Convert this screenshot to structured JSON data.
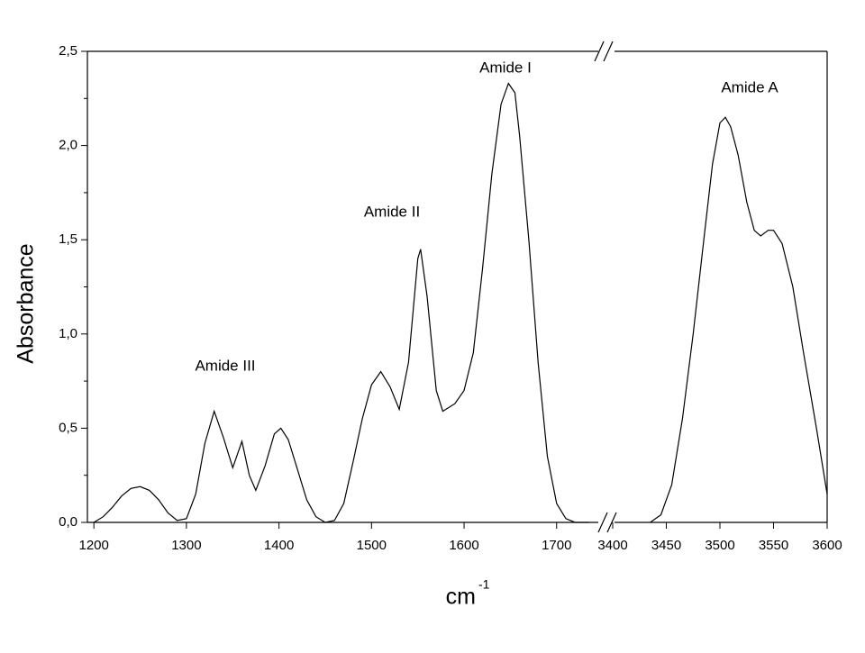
{
  "chart_data": {
    "type": "line",
    "color": "#000000",
    "ylabel": "Absorbance",
    "xlabel": "cm",
    "xlabel_sup": "-1",
    "ylim": [
      0,
      2.5
    ],
    "yticks": [
      {
        "value": 0,
        "label": "0,0"
      },
      {
        "value": 0.5,
        "label": "0,5"
      },
      {
        "value": 1,
        "label": "1,0"
      },
      {
        "value": 1.5,
        "label": "1,5"
      },
      {
        "value": 2,
        "label": "2,0"
      },
      {
        "value": 2.5,
        "label": "2,5"
      }
    ],
    "yminorticks": [
      0.25,
      0.75,
      1.25,
      1.75,
      2.25
    ],
    "segments": [
      {
        "xlim": [
          1193,
          1746
        ],
        "xticks": [
          1200,
          1300,
          1400,
          1500,
          1600,
          1700
        ],
        "x": [
          1200,
          1210,
          1220,
          1230,
          1240,
          1250,
          1260,
          1270,
          1280,
          1290,
          1300,
          1310,
          1320,
          1330,
          1340,
          1350,
          1360,
          1368,
          1375,
          1385,
          1395,
          1402,
          1410,
          1420,
          1430,
          1440,
          1450,
          1460,
          1470,
          1480,
          1490,
          1500,
          1510,
          1520,
          1530,
          1540,
          1550,
          1553,
          1560,
          1570,
          1577,
          1590,
          1600,
          1610,
          1620,
          1630,
          1640,
          1648,
          1655,
          1660,
          1670,
          1680,
          1690,
          1700,
          1710,
          1720,
          1735
        ],
        "values": [
          0.0,
          0.03,
          0.08,
          0.14,
          0.18,
          0.19,
          0.17,
          0.12,
          0.05,
          0.01,
          0.02,
          0.15,
          0.42,
          0.59,
          0.45,
          0.29,
          0.43,
          0.25,
          0.17,
          0.3,
          0.47,
          0.5,
          0.44,
          0.28,
          0.12,
          0.03,
          0.0,
          0.01,
          0.1,
          0.32,
          0.55,
          0.73,
          0.8,
          0.72,
          0.6,
          0.85,
          1.4,
          1.45,
          1.2,
          0.7,
          0.59,
          0.63,
          0.7,
          0.9,
          1.35,
          1.85,
          2.22,
          2.33,
          2.28,
          2.05,
          1.5,
          0.85,
          0.35,
          0.1,
          0.02,
          0.0,
          0.0
        ]
      },
      {
        "xlim": [
          3400,
          3600
        ],
        "xticks": [
          3400,
          3450,
          3500,
          3550,
          3600
        ],
        "x": [
          3435,
          3445,
          3455,
          3465,
          3475,
          3485,
          3493,
          3500,
          3505,
          3510,
          3517,
          3525,
          3532,
          3538,
          3545,
          3550,
          3558,
          3568,
          3578,
          3590,
          3600
        ],
        "values": [
          0.0,
          0.04,
          0.2,
          0.55,
          1.0,
          1.5,
          1.9,
          2.12,
          2.15,
          2.1,
          1.95,
          1.7,
          1.55,
          1.52,
          1.55,
          1.55,
          1.48,
          1.25,
          0.9,
          0.5,
          0.15
        ]
      }
    ],
    "annotations": [
      "Amide III",
      "Amide II",
      "Amide I",
      "Amide A"
    ]
  }
}
